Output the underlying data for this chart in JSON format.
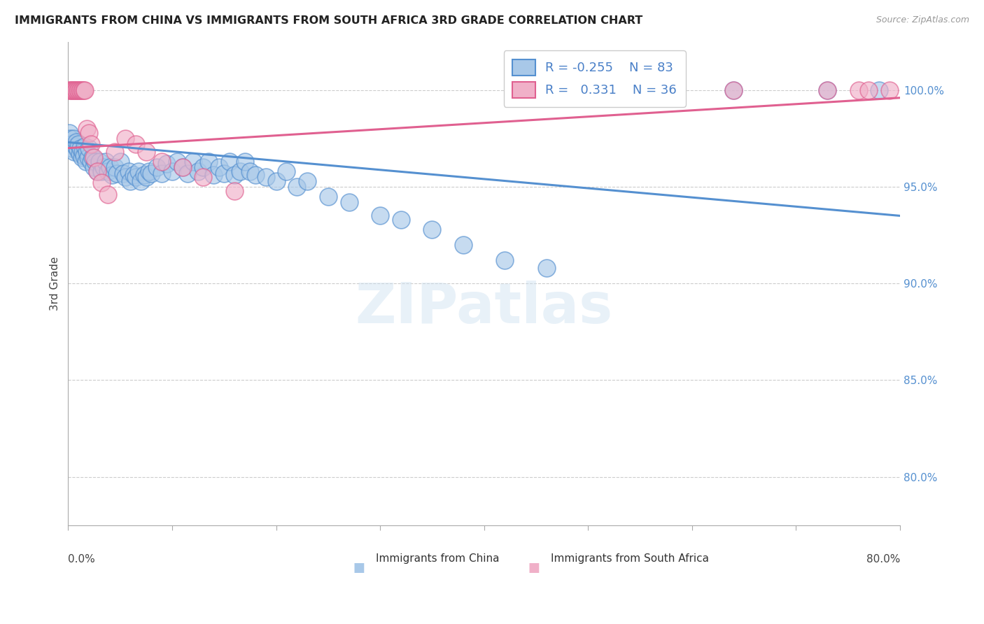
{
  "title": "IMMIGRANTS FROM CHINA VS IMMIGRANTS FROM SOUTH AFRICA 3RD GRADE CORRELATION CHART",
  "source": "Source: ZipAtlas.com",
  "ylabel": "3rd Grade",
  "ytick_labels": [
    "100.0%",
    "95.0%",
    "90.0%",
    "85.0%",
    "80.0%"
  ],
  "ytick_values": [
    1.0,
    0.95,
    0.9,
    0.85,
    0.8
  ],
  "xlim": [
    0.0,
    0.8
  ],
  "ylim": [
    0.775,
    1.025
  ],
  "legend_blue_R": "-0.255",
  "legend_blue_N": "83",
  "legend_pink_R": "0.331",
  "legend_pink_N": "36",
  "blue_color": "#a8c8e8",
  "blue_edge_color": "#5590d0",
  "pink_color": "#f0b0c8",
  "pink_edge_color": "#e06090",
  "watermark": "ZIPatlas",
  "blue_trend_x": [
    0.0,
    0.8
  ],
  "blue_trend_y": [
    0.973,
    0.935
  ],
  "pink_trend_x": [
    0.0,
    0.8
  ],
  "pink_trend_y": [
    0.97,
    0.996
  ],
  "blue_scatter_x": [
    0.001,
    0.002,
    0.003,
    0.004,
    0.005,
    0.006,
    0.007,
    0.008,
    0.009,
    0.01,
    0.011,
    0.012,
    0.013,
    0.014,
    0.015,
    0.016,
    0.017,
    0.018,
    0.019,
    0.02,
    0.022,
    0.023,
    0.025,
    0.026,
    0.028,
    0.03,
    0.032,
    0.034,
    0.036,
    0.038,
    0.04,
    0.042,
    0.045,
    0.047,
    0.05,
    0.053,
    0.055,
    0.058,
    0.06,
    0.063,
    0.065,
    0.068,
    0.07,
    0.073,
    0.075,
    0.078,
    0.08,
    0.085,
    0.09,
    0.095,
    0.1,
    0.105,
    0.11,
    0.115,
    0.12,
    0.125,
    0.13,
    0.135,
    0.14,
    0.145,
    0.15,
    0.155,
    0.16,
    0.165,
    0.17,
    0.175,
    0.18,
    0.19,
    0.2,
    0.21,
    0.22,
    0.23,
    0.25,
    0.27,
    0.3,
    0.32,
    0.35,
    0.38,
    0.42,
    0.46,
    0.64,
    0.73,
    0.78
  ],
  "blue_scatter_y": [
    0.978,
    0.975,
    0.972,
    0.97,
    0.975,
    0.968,
    0.971,
    0.973,
    0.969,
    0.972,
    0.967,
    0.97,
    0.965,
    0.968,
    0.966,
    0.971,
    0.963,
    0.968,
    0.965,
    0.97,
    0.963,
    0.965,
    0.96,
    0.963,
    0.958,
    0.963,
    0.958,
    0.96,
    0.963,
    0.958,
    0.96,
    0.956,
    0.96,
    0.957,
    0.963,
    0.957,
    0.955,
    0.958,
    0.953,
    0.956,
    0.955,
    0.958,
    0.953,
    0.956,
    0.955,
    0.958,
    0.957,
    0.96,
    0.957,
    0.962,
    0.958,
    0.963,
    0.96,
    0.957,
    0.963,
    0.958,
    0.96,
    0.963,
    0.956,
    0.96,
    0.957,
    0.963,
    0.956,
    0.958,
    0.963,
    0.958,
    0.956,
    0.955,
    0.953,
    0.958,
    0.95,
    0.953,
    0.945,
    0.942,
    0.935,
    0.933,
    0.928,
    0.92,
    0.912,
    0.908,
    1.0,
    1.0,
    1.0
  ],
  "pink_scatter_x": [
    0.001,
    0.002,
    0.003,
    0.004,
    0.005,
    0.006,
    0.007,
    0.008,
    0.009,
    0.01,
    0.011,
    0.012,
    0.013,
    0.014,
    0.015,
    0.016,
    0.018,
    0.02,
    0.022,
    0.025,
    0.028,
    0.032,
    0.038,
    0.045,
    0.055,
    0.065,
    0.075,
    0.09,
    0.11,
    0.13,
    0.16,
    0.64,
    0.73,
    0.76,
    0.77,
    0.79
  ],
  "pink_scatter_y": [
    1.0,
    1.0,
    1.0,
    1.0,
    1.0,
    1.0,
    1.0,
    1.0,
    1.0,
    1.0,
    1.0,
    1.0,
    1.0,
    1.0,
    1.0,
    1.0,
    0.98,
    0.978,
    0.972,
    0.965,
    0.958,
    0.952,
    0.946,
    0.968,
    0.975,
    0.972,
    0.968,
    0.963,
    0.96,
    0.955,
    0.948,
    1.0,
    1.0,
    1.0,
    1.0,
    1.0
  ]
}
